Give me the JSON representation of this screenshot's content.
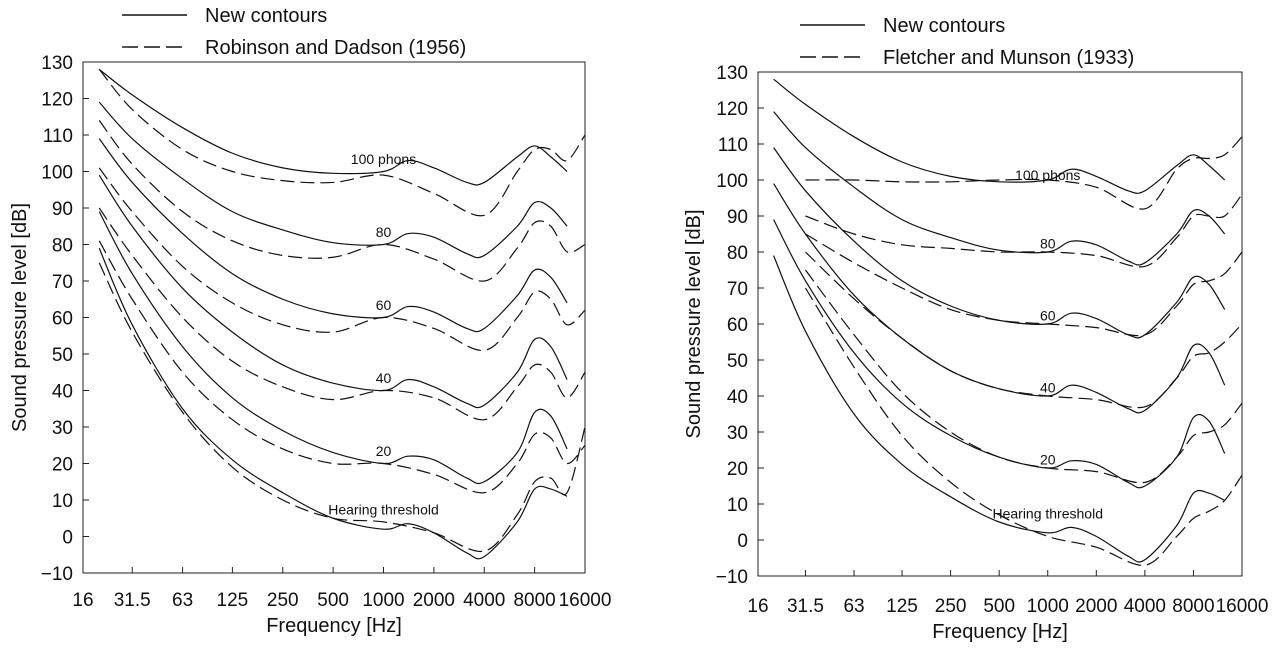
{
  "chart_data": [
    {
      "type": "line",
      "xlabel": "Frequency [Hz]",
      "ylabel": "Sound pressure level [dB]",
      "x_scale": "log",
      "xticks": [
        "16",
        "31.5",
        "63",
        "125",
        "250",
        "500",
        "1000",
        "2000",
        "4000",
        "8000",
        "16000"
      ],
      "yticks": [
        "130",
        "120",
        "110",
        "100",
        "90",
        "80",
        "70",
        "60",
        "50",
        "40",
        "30",
        "20",
        "10",
        "0",
        "−10"
      ],
      "xlim": [
        16,
        16000
      ],
      "ylim": [
        -10,
        130
      ],
      "grid": false,
      "legend_position": "top-left",
      "legend": [
        {
          "label": "New contours",
          "style": "solid"
        },
        {
          "label": "Robinson and Dadson (1956)",
          "style": "dashed"
        }
      ],
      "curve_labels": [
        {
          "text": "100 phons",
          "x": 1000,
          "y": 102
        },
        {
          "text": "80",
          "x": 1000,
          "y": 82
        },
        {
          "text": "60",
          "x": 1000,
          "y": 62
        },
        {
          "text": "40",
          "x": 1000,
          "y": 42
        },
        {
          "text": "20",
          "x": 1000,
          "y": 22
        },
        {
          "text": "Hearing threshold",
          "x": 1000,
          "y": 6
        }
      ],
      "series": [
        {
          "style": "solid",
          "x": [
            20,
            31.5,
            63,
            125,
            250,
            500,
            1000,
            1400,
            2000,
            3150,
            4000,
            6300,
            8000,
            10000,
            12500
          ],
          "y": [
            128,
            121,
            112,
            105,
            101,
            99.5,
            100,
            103,
            101,
            97,
            97,
            104,
            107,
            104,
            100
          ]
        },
        {
          "style": "solid",
          "x": [
            20,
            31.5,
            63,
            125,
            250,
            500,
            1000,
            1400,
            2000,
            3150,
            4000,
            6300,
            8000,
            10000,
            12500
          ],
          "y": [
            119,
            109,
            98,
            89,
            84,
            80.5,
            80,
            83,
            82,
            77.5,
            77,
            85,
            91.5,
            90,
            85
          ]
        },
        {
          "style": "solid",
          "x": [
            20,
            31.5,
            63,
            125,
            250,
            500,
            1000,
            1400,
            2000,
            3150,
            4000,
            6300,
            8000,
            10000,
            12500
          ],
          "y": [
            109,
            97,
            83,
            72,
            65,
            61,
            60,
            63,
            61.5,
            57,
            57,
            66,
            73,
            71,
            64
          ]
        },
        {
          "style": "solid",
          "x": [
            20,
            31.5,
            63,
            125,
            250,
            500,
            1000,
            1400,
            2000,
            3150,
            4000,
            6300,
            8000,
            10000,
            12500
          ],
          "y": [
            99,
            85,
            68,
            56,
            47,
            42,
            40,
            43,
            41,
            36.5,
            36,
            45,
            54,
            52,
            43
          ]
        },
        {
          "style": "solid",
          "x": [
            20,
            31.5,
            63,
            125,
            250,
            500,
            1000,
            1400,
            2000,
            3150,
            4000,
            6300,
            8000,
            10000,
            12500
          ],
          "y": [
            89,
            72,
            52,
            38,
            29,
            23,
            20,
            22,
            21,
            16,
            15,
            23,
            34,
            33,
            24
          ]
        },
        {
          "style": "solid",
          "x": [
            20,
            31.5,
            63,
            125,
            250,
            500,
            1000,
            1400,
            2000,
            3150,
            4000,
            6300,
            8000,
            10000,
            12500
          ],
          "y": [
            79,
            58,
            35,
            21,
            12,
            5,
            2,
            3.5,
            1,
            -4.5,
            -5.5,
            4,
            13,
            13,
            11
          ]
        },
        {
          "style": "dashed",
          "x": [
            20,
            31.5,
            63,
            125,
            250,
            500,
            1000,
            2000,
            4000,
            6300,
            8000,
            10000,
            12500,
            16000
          ],
          "y": [
            128,
            117,
            106,
            100,
            97.5,
            97,
            99,
            94,
            88,
            100,
            106,
            106,
            103,
            110
          ]
        },
        {
          "style": "dashed",
          "x": [
            20,
            31.5,
            63,
            125,
            250,
            500,
            1000,
            2000,
            4000,
            6300,
            8000,
            10000,
            12500,
            16000
          ],
          "y": [
            114,
            102,
            89,
            81,
            77,
            76.5,
            80,
            76,
            70,
            79,
            86,
            85,
            78,
            80
          ]
        },
        {
          "style": "dashed",
          "x": [
            20,
            31.5,
            63,
            125,
            250,
            500,
            1000,
            2000,
            4000,
            6300,
            8000,
            10000,
            12500,
            16000
          ],
          "y": [
            101,
            89,
            74,
            64,
            58,
            56,
            60,
            57,
            51,
            60,
            67,
            65,
            58,
            62
          ]
        },
        {
          "style": "dashed",
          "x": [
            20,
            31.5,
            63,
            125,
            250,
            500,
            1000,
            2000,
            4000,
            6300,
            8000,
            10000,
            12500,
            16000
          ],
          "y": [
            90,
            77,
            60,
            48,
            41,
            37.5,
            40,
            38,
            32,
            41,
            47,
            45,
            38,
            45
          ]
        },
        {
          "style": "dashed",
          "x": [
            20,
            31.5,
            63,
            125,
            250,
            500,
            1000,
            2000,
            4000,
            6300,
            8000,
            10000,
            12500,
            16000
          ],
          "y": [
            81,
            65,
            45,
            32,
            24,
            20,
            20,
            17,
            12,
            20,
            28,
            27,
            20,
            25
          ]
        },
        {
          "style": "dashed",
          "x": [
            20,
            31.5,
            63,
            125,
            250,
            500,
            1000,
            2000,
            4000,
            6300,
            8000,
            10000,
            12500,
            16000
          ],
          "y": [
            75,
            56,
            34,
            19,
            10,
            5,
            4,
            1,
            -4,
            6,
            15,
            16,
            12,
            30
          ]
        }
      ]
    },
    {
      "type": "line",
      "xlabel": "Frequency [Hz]",
      "ylabel": "Sound pressure level [dB]",
      "x_scale": "log",
      "xticks": [
        "16",
        "31.5",
        "63",
        "125",
        "250",
        "500",
        "1000",
        "2000",
        "4000",
        "8000",
        "16000"
      ],
      "yticks": [
        "130",
        "120",
        "110",
        "100",
        "90",
        "80",
        "70",
        "60",
        "50",
        "40",
        "30",
        "20",
        "10",
        "0",
        "−10"
      ],
      "xlim": [
        16,
        16000
      ],
      "ylim": [
        -10,
        130
      ],
      "grid": false,
      "legend_position": "top-center",
      "legend": [
        {
          "label": "New contours",
          "style": "solid"
        },
        {
          "label": "Fletcher and Munson (1933)",
          "style": "dashed"
        }
      ],
      "curve_labels": [
        {
          "text": "100 phons",
          "x": 1000,
          "y": 100
        },
        {
          "text": "80",
          "x": 1000,
          "y": 81
        },
        {
          "text": "60",
          "x": 1000,
          "y": 61
        },
        {
          "text": "40",
          "x": 1000,
          "y": 41
        },
        {
          "text": "20",
          "x": 1000,
          "y": 21
        },
        {
          "text": "Hearing threshold",
          "x": 1000,
          "y": 6
        }
      ],
      "series": [
        {
          "style": "solid",
          "x": [
            20,
            31.5,
            63,
            125,
            250,
            500,
            1000,
            1400,
            2000,
            3150,
            4000,
            6300,
            8000,
            10000,
            12500
          ],
          "y": [
            128,
            121,
            112,
            105,
            101,
            99.5,
            100,
            103,
            101,
            97,
            97,
            104,
            107,
            104,
            100
          ]
        },
        {
          "style": "solid",
          "x": [
            20,
            31.5,
            63,
            125,
            250,
            500,
            1000,
            1400,
            2000,
            3150,
            4000,
            6300,
            8000,
            10000,
            12500
          ],
          "y": [
            119,
            109,
            98,
            89,
            84,
            80.5,
            80,
            83,
            82,
            77.5,
            77,
            85,
            91.5,
            90,
            85
          ]
        },
        {
          "style": "solid",
          "x": [
            20,
            31.5,
            63,
            125,
            250,
            500,
            1000,
            1400,
            2000,
            3150,
            4000,
            6300,
            8000,
            10000,
            12500
          ],
          "y": [
            109,
            97,
            83,
            72,
            65,
            61,
            60,
            63,
            61.5,
            57,
            57,
            66,
            73,
            71,
            64
          ]
        },
        {
          "style": "solid",
          "x": [
            20,
            31.5,
            63,
            125,
            250,
            500,
            1000,
            1400,
            2000,
            3150,
            4000,
            6300,
            8000,
            10000,
            12500
          ],
          "y": [
            99,
            85,
            68,
            56,
            47,
            42,
            40,
            43,
            41,
            36.5,
            36,
            45,
            54,
            52,
            43
          ]
        },
        {
          "style": "solid",
          "x": [
            20,
            31.5,
            63,
            125,
            250,
            500,
            1000,
            1400,
            2000,
            3150,
            4000,
            6300,
            8000,
            10000,
            12500
          ],
          "y": [
            89,
            72,
            52,
            38,
            29,
            23,
            20,
            22,
            21,
            16,
            15,
            23,
            34,
            33,
            24
          ]
        },
        {
          "style": "solid",
          "x": [
            20,
            31.5,
            63,
            125,
            250,
            500,
            1000,
            1400,
            2000,
            3150,
            4000,
            6300,
            8000,
            10000,
            12500
          ],
          "y": [
            79,
            58,
            35,
            21,
            12,
            5,
            2,
            3.5,
            1,
            -4.5,
            -5.5,
            4,
            13,
            13,
            11
          ]
        },
        {
          "style": "dashed",
          "x": [
            31.5,
            63,
            125,
            250,
            500,
            1000,
            2000,
            4000,
            6300,
            8000,
            10000,
            12500,
            16000
          ],
          "y": [
            100,
            100,
            99.5,
            99.5,
            100,
            100,
            98,
            92,
            103,
            106,
            106,
            107,
            112
          ]
        },
        {
          "style": "dashed",
          "x": [
            31.5,
            63,
            125,
            250,
            500,
            1000,
            2000,
            4000,
            6300,
            8000,
            10000,
            12500,
            16000
          ],
          "y": [
            90,
            85,
            82,
            81,
            80,
            80,
            79,
            76,
            84,
            90,
            90,
            90,
            96
          ]
        },
        {
          "style": "dashed",
          "x": [
            31.5,
            63,
            125,
            250,
            500,
            1000,
            2000,
            4000,
            6300,
            8000,
            10000,
            12500,
            16000
          ],
          "y": [
            85,
            77,
            70,
            64,
            61,
            60,
            59,
            57,
            65,
            71,
            72,
            74,
            80
          ]
        },
        {
          "style": "dashed",
          "x": [
            31.5,
            63,
            125,
            250,
            500,
            1000,
            2000,
            4000,
            6300,
            8000,
            10000,
            12500,
            16000
          ],
          "y": [
            80,
            67,
            56,
            47,
            42,
            40,
            39,
            37,
            45,
            51,
            52,
            55,
            60
          ]
        },
        {
          "style": "dashed",
          "x": [
            31.5,
            63,
            125,
            250,
            500,
            1000,
            2000,
            4000,
            6300,
            8000,
            10000,
            12500,
            16000
          ],
          "y": [
            75,
            57,
            41,
            30,
            23,
            20,
            19,
            16,
            23,
            29,
            30,
            32,
            38
          ]
        },
        {
          "style": "dashed",
          "x": [
            31.5,
            63,
            125,
            250,
            500,
            1000,
            2000,
            4000,
            6300,
            8000,
            10000,
            12500,
            16000
          ],
          "y": [
            70,
            48,
            29,
            16,
            7,
            1,
            -2,
            -7,
            1,
            6,
            8,
            11,
            18
          ]
        }
      ]
    }
  ]
}
